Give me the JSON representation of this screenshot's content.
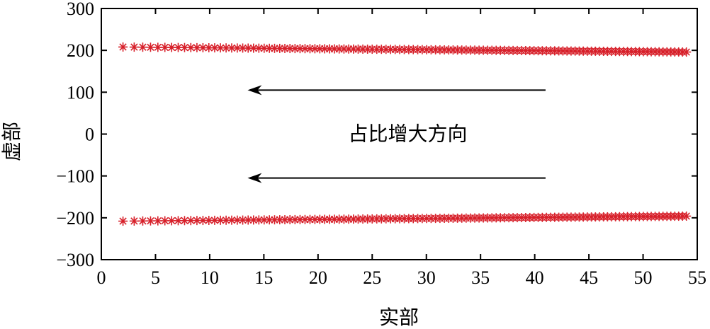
{
  "chart_data": {
    "type": "scatter",
    "xlabel": "实部",
    "ylabel": "虚部",
    "xlim": [
      0,
      55
    ],
    "ylim": [
      -300,
      300
    ],
    "xticks": [
      0,
      5,
      10,
      15,
      20,
      25,
      30,
      35,
      40,
      45,
      50,
      55
    ],
    "yticks": [
      300,
      200,
      100,
      0,
      -100,
      -200,
      -300
    ],
    "ytick_labels": [
      "300",
      "200",
      "100",
      "0",
      "−100",
      "−200",
      "−300"
    ],
    "marker": "asterisk",
    "marker_color": "#d7202a",
    "grid": false,
    "series": [
      {
        "x_start": 2,
        "x_end": 54,
        "y_start": 208,
        "y_end": 196,
        "points": 120
      },
      {
        "x_start": 2,
        "x_end": 54,
        "y_start": -208,
        "y_end": -196,
        "points": 120
      }
    ],
    "annotations": [
      {
        "text": "占比增大方向",
        "x": 27.5,
        "y": 0
      }
    ],
    "arrows": [
      {
        "x_from": 41,
        "x_to": 13.5,
        "y": 105
      },
      {
        "x_from": 41,
        "x_to": 13.5,
        "y": -105
      }
    ]
  }
}
